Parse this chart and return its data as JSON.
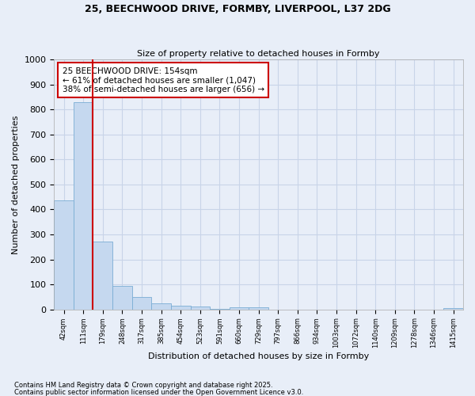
{
  "title": "25, BEECHWOOD DRIVE, FORMBY, LIVERPOOL, L37 2DG",
  "subtitle": "Size of property relative to detached houses in Formby",
  "xlabel": "Distribution of detached houses by size in Formby",
  "ylabel": "Number of detached properties",
  "bins": [
    "42sqm",
    "111sqm",
    "179sqm",
    "248sqm",
    "317sqm",
    "385sqm",
    "454sqm",
    "523sqm",
    "591sqm",
    "660sqm",
    "729sqm",
    "797sqm",
    "866sqm",
    "934sqm",
    "1003sqm",
    "1072sqm",
    "1140sqm",
    "1209sqm",
    "1278sqm",
    "1346sqm",
    "1415sqm"
  ],
  "values": [
    435,
    830,
    270,
    95,
    50,
    25,
    15,
    10,
    2,
    8,
    8,
    0,
    0,
    0,
    0,
    0,
    0,
    0,
    0,
    0,
    5
  ],
  "bar_color": "#c5d8ef",
  "bar_edge_color": "#7aadd4",
  "vline_color": "#cc0000",
  "annotation_text": "25 BEECHWOOD DRIVE: 154sqm\n← 61% of detached houses are smaller (1,047)\n38% of semi-detached houses are larger (656) →",
  "annotation_box_color": "white",
  "annotation_box_edge": "#cc0000",
  "ylim": [
    0,
    1000
  ],
  "yticks": [
    0,
    100,
    200,
    300,
    400,
    500,
    600,
    700,
    800,
    900,
    1000
  ],
  "footer_line1": "Contains HM Land Registry data © Crown copyright and database right 2025.",
  "footer_line2": "Contains public sector information licensed under the Open Government Licence v3.0.",
  "bg_color": "#e8eef8",
  "grid_color": "#c8d4e8",
  "title_fontsize": 9,
  "subtitle_fontsize": 8
}
